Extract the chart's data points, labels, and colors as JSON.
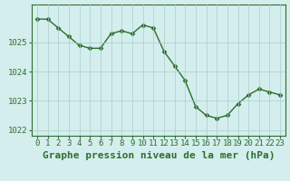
{
  "hours": [
    0,
    1,
    2,
    3,
    4,
    5,
    6,
    7,
    8,
    9,
    10,
    11,
    12,
    13,
    14,
    15,
    16,
    17,
    18,
    19,
    20,
    21,
    22,
    23
  ],
  "pressure": [
    1025.8,
    1025.8,
    1025.5,
    1025.2,
    1024.9,
    1024.8,
    1024.8,
    1025.3,
    1025.4,
    1025.3,
    1025.6,
    1025.5,
    1024.7,
    1024.2,
    1023.7,
    1022.8,
    1022.5,
    1022.4,
    1022.5,
    1022.9,
    1023.2,
    1023.4,
    1023.3,
    1023.2
  ],
  "line_color": "#2d6e2d",
  "marker": "D",
  "marker_size": 2.5,
  "bg_color": "#d4eeee",
  "grid_color": "#aacccc",
  "xlabel": "Graphe pression niveau de la mer (hPa)",
  "xlabel_fontsize": 8,
  "ylim": [
    1021.8,
    1026.3
  ],
  "yticks": [
    1022,
    1023,
    1024,
    1025
  ],
  "xticks": [
    0,
    1,
    2,
    3,
    4,
    5,
    6,
    7,
    8,
    9,
    10,
    11,
    12,
    13,
    14,
    15,
    16,
    17,
    18,
    19,
    20,
    21,
    22,
    23
  ],
  "tick_fontsize": 6.5,
  "tick_color": "#2d6e2d",
  "spine_color": "#2d6e2d",
  "linewidth": 1.0
}
